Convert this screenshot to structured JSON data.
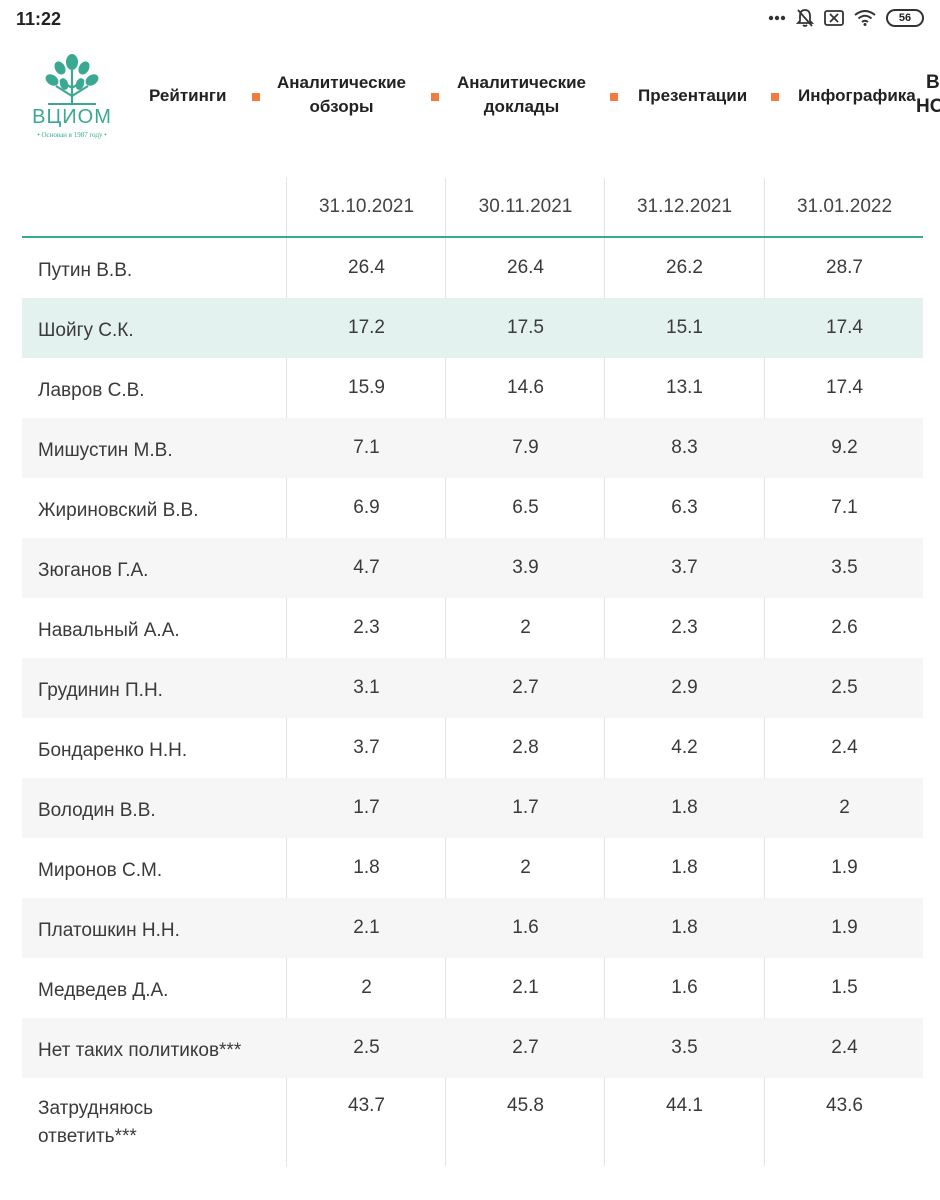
{
  "status": {
    "time": "11:22",
    "battery": "56"
  },
  "header": {
    "logo_text": "ВЦИОМ",
    "logo_subtitle": "• Основан в 1987 году •",
    "nav": {
      "ratings": "Рейтинги",
      "reviews_1": "Аналитические",
      "reviews_2": "обзоры",
      "reports_1": "Аналитические",
      "reports_2": "доклады",
      "presentations": "Презентации",
      "infographics": "Инфографика",
      "more_1": "В",
      "more_2": "НО"
    },
    "accent_color": "#f07c3d",
    "brand_color": "#3aa892"
  },
  "table": {
    "columns": [
      "31.10.2021",
      "30.11.2021",
      "31.12.2021",
      "31.01.2022"
    ],
    "rows": [
      {
        "name": "Путин В.В.",
        "values": [
          "26.4",
          "26.4",
          "26.2",
          "28.7"
        ]
      },
      {
        "name": "Шойгу С.К.",
        "values": [
          "17.2",
          "17.5",
          "15.1",
          "17.4"
        ]
      },
      {
        "name": "Лавров С.В.",
        "values": [
          "15.9",
          "14.6",
          "13.1",
          "17.4"
        ]
      },
      {
        "name": "Мишустин М.В.",
        "values": [
          "7.1",
          "7.9",
          "8.3",
          "9.2"
        ]
      },
      {
        "name": "Жириновский В.В.",
        "values": [
          "6.9",
          "6.5",
          "6.3",
          "7.1"
        ]
      },
      {
        "name": "Зюганов Г.А.",
        "values": [
          "4.7",
          "3.9",
          "3.7",
          "3.5"
        ]
      },
      {
        "name": "Навальный А.А.",
        "values": [
          "2.3",
          "2",
          "2.3",
          "2.6"
        ]
      },
      {
        "name": "Грудинин П.Н.",
        "values": [
          "3.1",
          "2.7",
          "2.9",
          "2.5"
        ]
      },
      {
        "name": "Бондаренко Н.Н.",
        "values": [
          "3.7",
          "2.8",
          "4.2",
          "2.4"
        ]
      },
      {
        "name": "Володин В.В.",
        "values": [
          "1.7",
          "1.7",
          "1.8",
          "2"
        ]
      },
      {
        "name": "Миронов С.М.",
        "values": [
          "1.8",
          "2",
          "1.8",
          "1.9"
        ]
      },
      {
        "name": "Платошкин Н.Н.",
        "values": [
          "2.1",
          "1.6",
          "1.8",
          "1.9"
        ]
      },
      {
        "name": "Медведев Д.А.",
        "values": [
          "2",
          "2.1",
          "1.6",
          "1.5"
        ]
      },
      {
        "name": "Нет таких политиков***",
        "values": [
          "2.5",
          "2.7",
          "3.5",
          "2.4"
        ]
      },
      {
        "name": "Затрудняюсь ответить***",
        "values": [
          "43.7",
          "45.8",
          "44.1",
          "43.6"
        ]
      }
    ]
  }
}
